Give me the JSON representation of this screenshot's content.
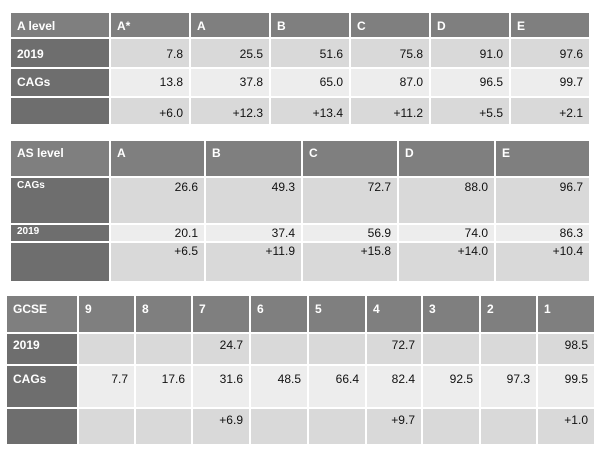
{
  "tables": [
    {
      "header": [
        "A level",
        "A*",
        "A",
        "B",
        "C",
        "D",
        "E"
      ],
      "rows": [
        [
          "2019",
          "7.8",
          "25.5",
          "51.6",
          "75.8",
          "91.0",
          "97.6"
        ],
        [
          "CAGs",
          "13.8",
          "37.8",
          "65.0",
          "87.0",
          "96.5",
          "99.7"
        ],
        [
          null,
          "+6.0",
          "+12.3",
          "+13.4",
          "+11.2",
          "+5.5",
          "+2.1"
        ]
      ]
    },
    {
      "header": [
        "AS level",
        "A",
        "B",
        "C",
        "D",
        "E"
      ],
      "rows": [
        [
          "CAGs",
          "26.6",
          "49.3",
          "72.7",
          "88.0",
          "96.7"
        ],
        [
          "2019",
          "20.1",
          "37.4",
          "56.9",
          "74.0",
          "86.3"
        ],
        [
          null,
          "+6.5",
          "+11.9",
          "+15.8",
          "+14.0",
          "+10.4"
        ]
      ]
    },
    {
      "header": [
        "GCSE",
        "9",
        "8",
        "7",
        "6",
        "5",
        "4",
        "3",
        "2",
        "1"
      ],
      "rows": [
        [
          "2019",
          null,
          null,
          "24.7",
          null,
          null,
          "72.7",
          null,
          null,
          "98.5"
        ],
        [
          "CAGs",
          "7.7",
          "17.6",
          "31.6",
          "48.5",
          "66.4",
          "82.4",
          "92.5",
          "97.3",
          "99.5"
        ],
        [
          null,
          null,
          null,
          "+6.9",
          null,
          null,
          "+9.7",
          null,
          null,
          "+1.0"
        ]
      ]
    }
  ]
}
